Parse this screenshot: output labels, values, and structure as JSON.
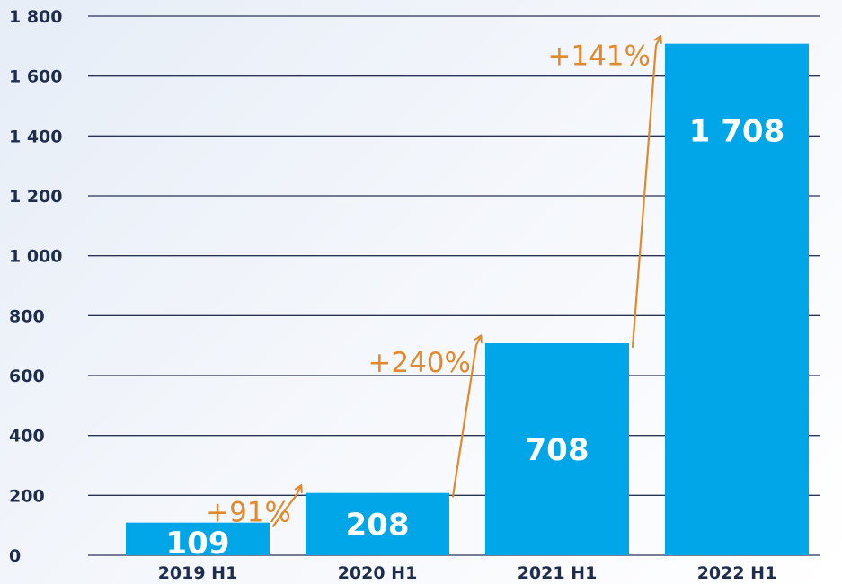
{
  "chart_data": {
    "type": "bar",
    "categories": [
      "2019 H1",
      "2020 H1",
      "2021 H1",
      "2022 H1"
    ],
    "values": [
      109,
      208,
      708,
      1708
    ],
    "value_labels": [
      "109",
      "208",
      "708",
      "1 708"
    ],
    "ylim": [
      0,
      1800
    ],
    "yticks": [
      0,
      200,
      400,
      600,
      800,
      1000,
      1200,
      1400,
      1600,
      1800
    ],
    "ytick_labels": [
      "0",
      "200",
      "400",
      "600",
      "800",
      "1 000",
      "1 200",
      "1 400",
      "1 600",
      "1 800"
    ],
    "grid": true,
    "growth": [
      {
        "from": "2019 H1",
        "to": "2020 H1",
        "label": "+91%"
      },
      {
        "from": "2020 H1",
        "to": "2021 H1",
        "label": "+240%"
      },
      {
        "from": "2021 H1",
        "to": "2022 H1",
        "label": "+141%"
      }
    ]
  },
  "colors": {
    "bar": "#00a6e8",
    "growth": "#e08a2e",
    "text": "#1f2d4d",
    "grid": "#2a3350"
  }
}
